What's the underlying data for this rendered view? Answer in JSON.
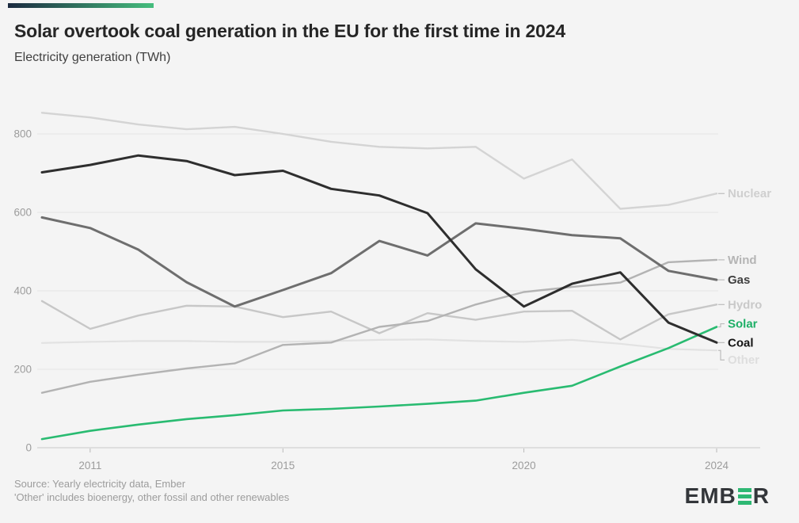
{
  "header": {
    "title": "Solar overtook coal generation in the EU for the first time in 2024",
    "subtitle": "Electricity generation (TWh)"
  },
  "accent": {
    "gradient_start": "#1b2a40",
    "gradient_end": "#45bd7d"
  },
  "chart_data": {
    "type": "line",
    "x": [
      2010,
      2011,
      2012,
      2013,
      2014,
      2015,
      2016,
      2017,
      2018,
      2019,
      2020,
      2021,
      2022,
      2023,
      2024
    ],
    "x_ticks": [
      "2011",
      "2015",
      "2020",
      "2024"
    ],
    "x_tick_years": [
      2011,
      2015,
      2020,
      2024
    ],
    "y_ticks": [
      0,
      200,
      400,
      600,
      800
    ],
    "ylim": [
      0,
      870
    ],
    "grid": true,
    "legend_position": "right-edge-labels",
    "ylabel": "Electricity generation (TWh)",
    "series": [
      {
        "name": "Other",
        "color": "#e2e2e2",
        "label_color": "#dedede",
        "width": 2.2,
        "label_dy": 12,
        "values": [
          267,
          270,
          272,
          272,
          270,
          270,
          272,
          275,
          276,
          272,
          270,
          275,
          265,
          252,
          248
        ]
      },
      {
        "name": "Hydro",
        "color": "#c7c7c7",
        "label_color": "#c9c9c9",
        "width": 2.4,
        "label_dy": 0,
        "values": [
          374,
          303,
          337,
          362,
          360,
          333,
          347,
          292,
          343,
          326,
          347,
          349,
          276,
          340,
          365
        ]
      },
      {
        "name": "Nuclear",
        "color": "#d4d4d4",
        "label_color": "#cfcfcf",
        "width": 2.4,
        "label_dy": 0,
        "values": [
          854,
          842,
          824,
          812,
          818,
          800,
          780,
          767,
          763,
          767,
          686,
          735,
          609,
          619,
          648
        ]
      },
      {
        "name": "Wind",
        "color": "#b3b3b3",
        "label_color": "#b5b5b5",
        "width": 2.4,
        "label_dy": 0,
        "values": [
          140,
          168,
          186,
          202,
          215,
          262,
          268,
          308,
          323,
          365,
          397,
          410,
          421,
          473,
          479
        ]
      },
      {
        "name": "Gas",
        "color": "#6e6e6e",
        "label_color": "#3f3f3f",
        "width": 3,
        "label_dy": 0,
        "values": [
          587,
          560,
          505,
          422,
          360,
          402,
          445,
          527,
          490,
          572,
          558,
          542,
          534,
          451,
          428
        ]
      },
      {
        "name": "Solar",
        "color": "#29bb71",
        "label_color": "#1daf66",
        "width": 2.6,
        "label_dy": -4,
        "values": [
          22,
          43,
          59,
          73,
          83,
          95,
          99,
          105,
          112,
          120,
          140,
          158,
          207,
          254,
          308
        ]
      },
      {
        "name": "Coal",
        "color": "#2e2e2e",
        "label_color": "#141414",
        "width": 3,
        "label_dy": 0,
        "values": [
          702,
          721,
          745,
          731,
          695,
          706,
          660,
          643,
          598,
          455,
          360,
          418,
          447,
          319,
          268
        ]
      }
    ]
  },
  "footer": {
    "source_line1": "Source: Yearly electricity data, Ember",
    "source_line2": "'Other' includes bioenergy, other fossil and other renewables",
    "logo": {
      "left": "EMB",
      "right": "R",
      "green": "#2eb873"
    }
  }
}
